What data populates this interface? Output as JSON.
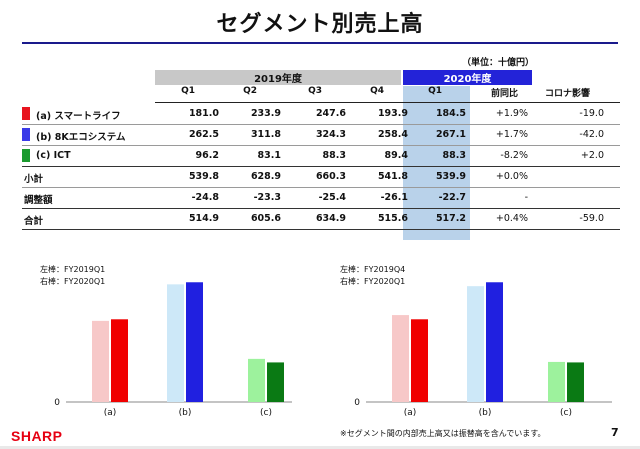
{
  "title": "セグメント別売上高",
  "unit": "（単位：十億円）",
  "headers": {
    "fy2019": "2019年度",
    "fy2020": "2020年度",
    "quarters_2019": [
      "Q1",
      "Q2",
      "Q3",
      "Q4"
    ],
    "q1_2020": "Q1",
    "yoy": "前同比",
    "covid": "コロナ影響"
  },
  "rows": [
    {
      "label": "(a) スマートライフ",
      "color": "#e8141f",
      "q1": "181.0",
      "q2": "233.9",
      "q3": "247.6",
      "q4": "193.9",
      "q1_2020": "184.5",
      "yoy": "+1.9%",
      "covid": "-19.0"
    },
    {
      "label": "(b) 8Kエコシステム",
      "color": "#3a3ae8",
      "q1": "262.5",
      "q2": "311.8",
      "q3": "324.3",
      "q4": "258.4",
      "q1_2020": "267.1",
      "yoy": "+1.7%",
      "covid": "-42.0"
    },
    {
      "label": "(c) ICT",
      "color": "#1a9a2e",
      "q1": "96.2",
      "q2": "83.1",
      "q3": "88.3",
      "q4": "89.4",
      "q1_2020": "88.3",
      "yoy": "-8.2%",
      "covid": "+2.0"
    },
    {
      "label": "小計",
      "q1": "539.8",
      "q2": "628.9",
      "q3": "660.3",
      "q4": "541.8",
      "q1_2020": "539.9",
      "yoy": "+0.0%",
      "covid": ""
    },
    {
      "label": "調整額",
      "q1": "-24.8",
      "q2": "-23.3",
      "q3": "-25.4",
      "q4": "-26.1",
      "q1_2020": "-22.7",
      "yoy": "-",
      "covid": ""
    },
    {
      "label": "合計",
      "q1": "514.9",
      "q2": "605.6",
      "q3": "634.9",
      "q4": "515.6",
      "q1_2020": "517.2",
      "yoy": "+0.4%",
      "covid": "-59.0"
    }
  ],
  "chart_data": [
    {
      "type": "bar",
      "legend": [
        "左棒：FY2019Q1",
        "右棒：FY2020Q1"
      ],
      "categories": [
        "(a)",
        "(b)",
        "(c)"
      ],
      "series": [
        {
          "name": "FY2019Q1",
          "values": [
            181.0,
            262.5,
            96.2
          ]
        },
        {
          "name": "FY2020Q1",
          "values": [
            184.5,
            267.1,
            88.3
          ]
        }
      ],
      "y_zero_label": "0",
      "light_colors": [
        "#f7c8c8",
        "#cde8f8",
        "#9df29d"
      ],
      "dark_colors": [
        "#f00000",
        "#2020e0",
        "#0a7a14"
      ]
    },
    {
      "type": "bar",
      "legend": [
        "左棒：FY2019Q4",
        "右棒：FY2020Q1"
      ],
      "categories": [
        "(a)",
        "(b)",
        "(c)"
      ],
      "series": [
        {
          "name": "FY2019Q4",
          "values": [
            193.9,
            258.4,
            89.4
          ]
        },
        {
          "name": "FY2020Q1",
          "values": [
            184.5,
            267.1,
            88.3
          ]
        }
      ],
      "y_zero_label": "0",
      "light_colors": [
        "#f7c8c8",
        "#cde8f8",
        "#9df29d"
      ],
      "dark_colors": [
        "#f00000",
        "#2020e0",
        "#0a7a14"
      ]
    }
  ],
  "footnote": "※セグメント間の内部売上高又は振替高を含んでいます。",
  "page_number": "7",
  "logo": "SHARP"
}
